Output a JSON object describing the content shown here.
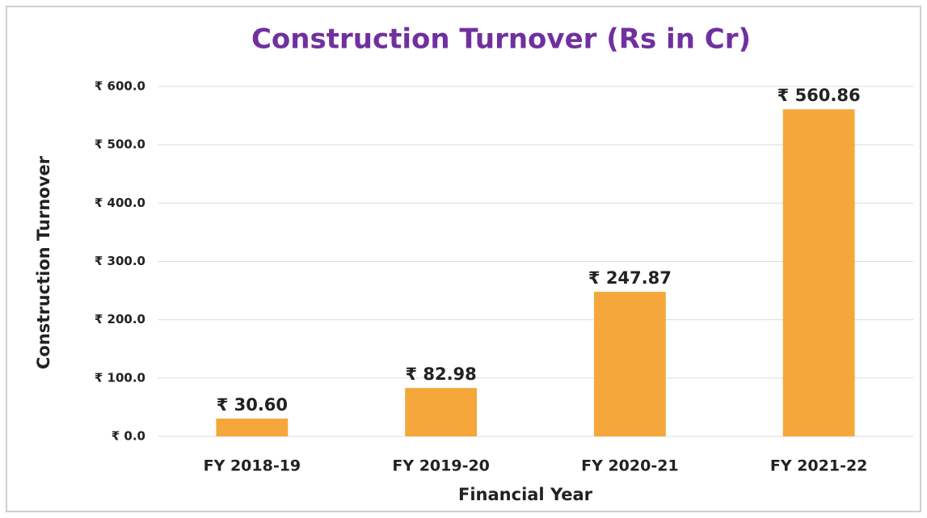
{
  "chart_data": {
    "type": "bar",
    "title": "Construction Turnover (Rs in Cr)",
    "x_label": "Financial Year",
    "y_label": "Construction Turnover",
    "categories": [
      "FY 2018-19",
      "FY 2019-20",
      "FY 2020-21",
      "FY 2021-22"
    ],
    "values": [
      30.6,
      82.98,
      247.87,
      560.86
    ],
    "value_labels": [
      "₹ 30.60",
      "₹ 82.98",
      "₹ 247.87",
      "₹ 560.86"
    ],
    "color": "#f5a73b",
    "ylim": [
      0,
      600
    ],
    "yticks": [
      {
        "value": 0,
        "label": "₹ 0.0"
      },
      {
        "value": 100,
        "label": "₹ 100.0"
      },
      {
        "value": 200,
        "label": "₹ 200.0"
      },
      {
        "value": 300,
        "label": "₹ 300.0"
      },
      {
        "value": 400,
        "label": "₹ 400.0"
      },
      {
        "value": 500,
        "label": "₹ 500.0"
      },
      {
        "value": 600,
        "label": "₹ 600.0"
      }
    ],
    "grid": true
  }
}
